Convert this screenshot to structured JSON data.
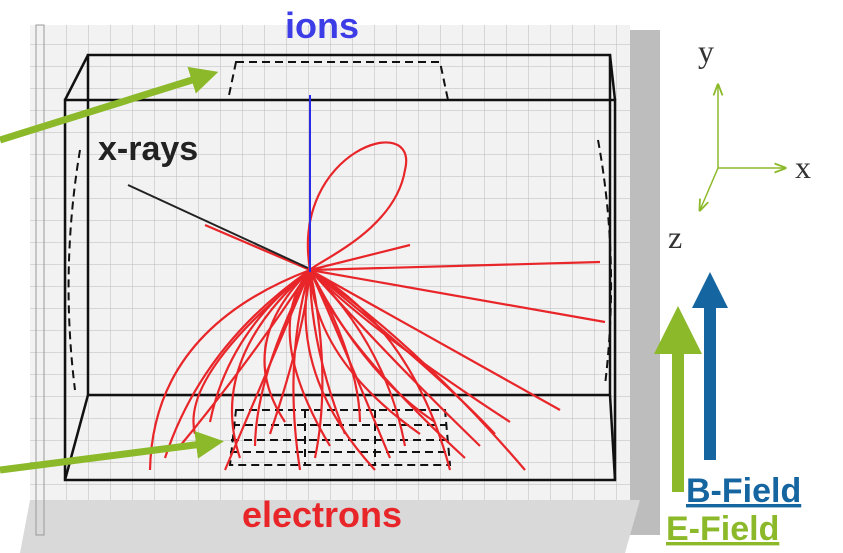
{
  "labels": {
    "ions": "ions",
    "xrays": "x-rays",
    "electrons": "electrons"
  },
  "axes": {
    "y": "y",
    "x": "x",
    "z": "z"
  },
  "legend": {
    "b_field": "B-Field",
    "e_field": "E-Field"
  }
}
